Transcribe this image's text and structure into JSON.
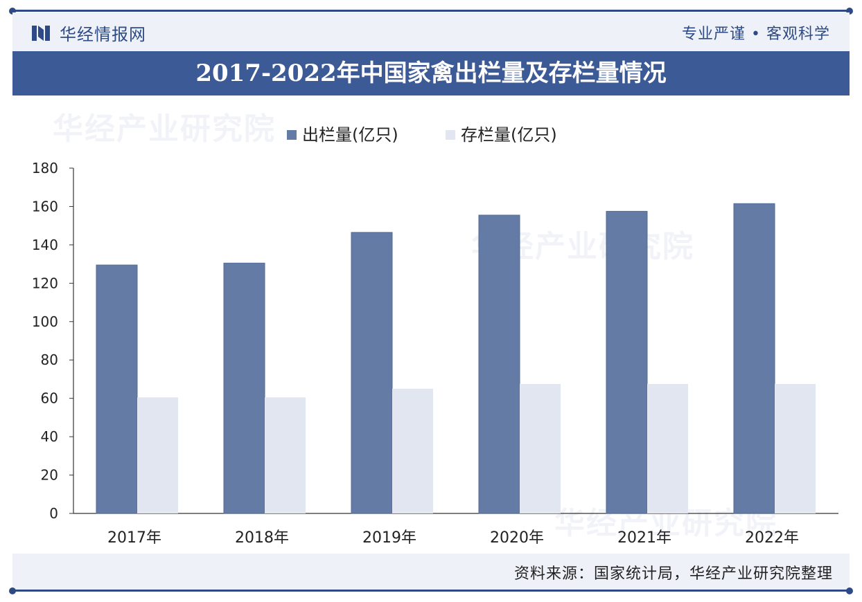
{
  "header": {
    "brand": "华经情报网",
    "slogan": "专业严谨 • 客观科学"
  },
  "title": "2017-2022年中国家禽出栏量及存栏量情况",
  "watermark": "华经产业研究院",
  "footer": {
    "source": "资料来源：国家统计局，华经产业研究院整理"
  },
  "colors": {
    "series1": "#647ca5",
    "series2": "#e2e6f0",
    "title_band": "#3c5a96",
    "brand": "#2e4a86"
  },
  "chart_data": {
    "type": "bar",
    "categories": [
      "2017年",
      "2018年",
      "2019年",
      "2020年",
      "2021年",
      "2022年"
    ],
    "series": [
      {
        "name": "出栏量(亿只)",
        "values": [
          129.5,
          130.5,
          146.5,
          155.5,
          157.5,
          161.5
        ]
      },
      {
        "name": "存栏量(亿只)",
        "values": [
          60.5,
          60.5,
          65.0,
          67.5,
          67.5,
          67.5
        ]
      }
    ],
    "ylim": [
      0,
      180
    ],
    "yticks": [
      0,
      20,
      40,
      60,
      80,
      100,
      120,
      140,
      160,
      180
    ],
    "legend": "top-center",
    "grid": false
  }
}
